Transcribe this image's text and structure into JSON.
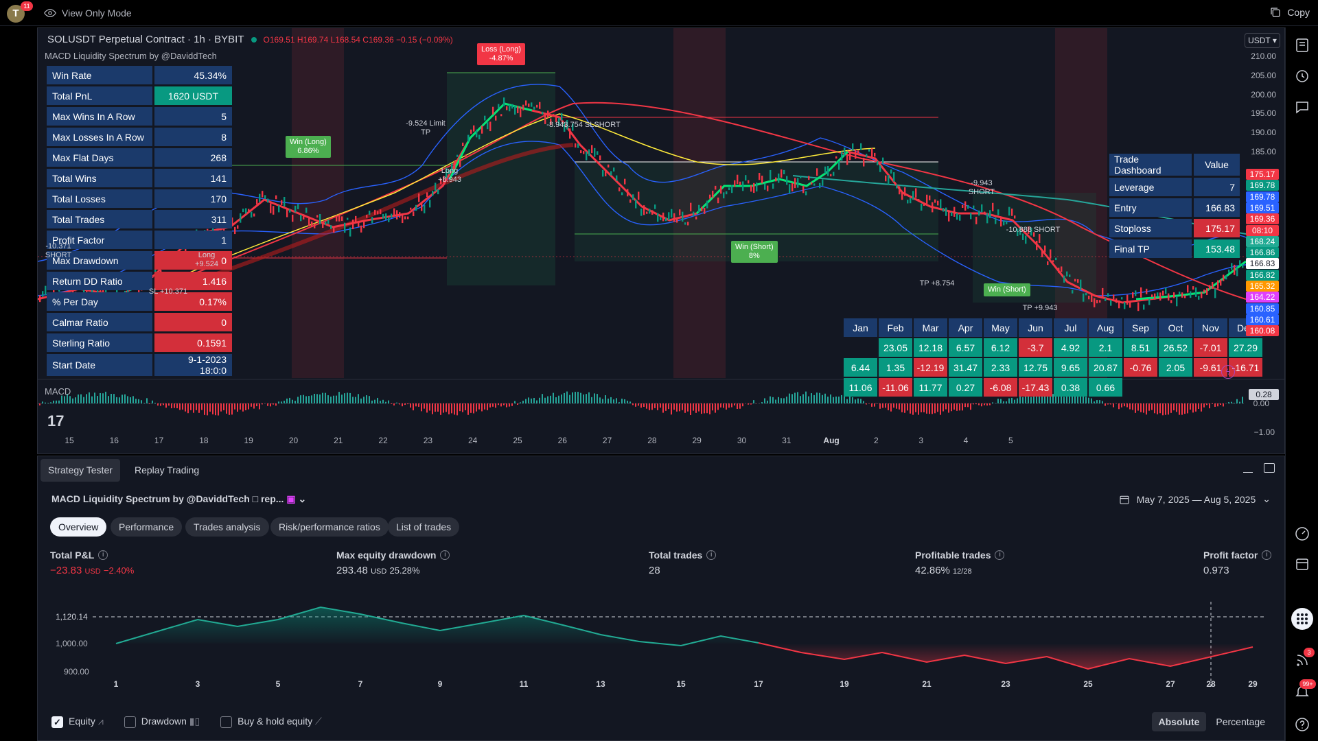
{
  "topbar": {
    "avatar_letter": "T",
    "avatar_badge": "11",
    "view_mode": "View Only Mode",
    "copy": "Copy"
  },
  "chart": {
    "symbol": "SOLUSDT Perpetual Contract · 1h · BYBIT",
    "ohlc": "O169.51 H169.74 L168.54 C169.36 −0.15 (−0.09%)",
    "indicator": "MACD Liquidity Spectrum by @DaviddTech",
    "currency": "USDT",
    "macd_label": "MACD",
    "macd_values": [
      "0.28",
      "0.00",
      "−1.00"
    ],
    "price_labels": [
      "210.00",
      "205.00",
      "200.00",
      "195.00",
      "190.00",
      "185.00"
    ],
    "price_tags": [
      {
        "v": "175.17",
        "c": "#f23645"
      },
      {
        "v": "169.78",
        "c": "#089981"
      },
      {
        "v": "169.78",
        "c": "#2962ff"
      },
      {
        "v": "169.51",
        "c": "#2962ff"
      },
      {
        "v": "169.36",
        "c": "#f23645"
      },
      {
        "v": "08:10",
        "c": "#f23645"
      },
      {
        "v": "168.24",
        "c": "#22ab94"
      },
      {
        "v": "166.86",
        "c": "#089981"
      },
      {
        "v": "166.83",
        "c": "#ffffff"
      },
      {
        "v": "166.82",
        "c": "#089981"
      },
      {
        "v": "165.32",
        "c": "#ff9800"
      },
      {
        "v": "164.22",
        "c": "#e040fb"
      },
      {
        "v": "160.85",
        "c": "#2962ff"
      },
      {
        "v": "160.61",
        "c": "#2962ff"
      },
      {
        "v": "160.08",
        "c": "#f23645"
      }
    ],
    "time_labels": [
      "15",
      "16",
      "17",
      "18",
      "19",
      "20",
      "21",
      "22",
      "23",
      "24",
      "25",
      "26",
      "27",
      "28",
      "29",
      "30",
      "31",
      "Aug",
      "2",
      "3",
      "4",
      "5"
    ],
    "stats": [
      {
        "k": "Win Rate",
        "v": "45.34%",
        "style": ""
      },
      {
        "k": "Total PnL",
        "v": "1620 USDT",
        "style": "green"
      },
      {
        "k": "Max Wins In A Row",
        "v": "5",
        "style": ""
      },
      {
        "k": "Max Losses In A Row",
        "v": "8",
        "style": ""
      },
      {
        "k": "Max Flat Days",
        "v": "268",
        "style": ""
      },
      {
        "k": "Total Wins",
        "v": "141",
        "style": ""
      },
      {
        "k": "Total Losses",
        "v": "170",
        "style": ""
      },
      {
        "k": "Total Trades",
        "v": "311",
        "style": ""
      },
      {
        "k": "Profit Factor",
        "v": "1",
        "style": ""
      },
      {
        "k": "Max Drawdown",
        "v": "0",
        "style": "red"
      },
      {
        "k": "Return DD Ratio",
        "v": "1.416",
        "style": "red"
      },
      {
        "k": "% Per Day",
        "v": "0.17%",
        "style": "red"
      },
      {
        "k": "Calmar Ratio",
        "v": "0",
        "style": "red"
      },
      {
        "k": "Sterling Ratio",
        "v": "0.1591",
        "style": "red"
      },
      {
        "k": "Start Date",
        "v": "9-1-2023 18:0:0",
        "style": ""
      }
    ],
    "trade_dashboard": {
      "title": "Trade Dashboard",
      "value_hdr": "Value",
      "rows": [
        {
          "k": "Leverage",
          "v": "7",
          "style": ""
        },
        {
          "k": "Entry",
          "v": "166.83",
          "style": ""
        },
        {
          "k": "Stoploss",
          "v": "175.17",
          "style": "red"
        },
        {
          "k": "Final TP",
          "v": "153.48",
          "style": "green"
        }
      ]
    },
    "monthly": {
      "months": [
        "Jan",
        "Feb",
        "Mar",
        "Apr",
        "May",
        "Jun",
        "Jul",
        "Aug",
        "Sep",
        "Oct",
        "Nov",
        "Dec"
      ],
      "rows": [
        [
          {
            "v": "",
            "s": "e"
          },
          {
            "v": "23.05",
            "s": "g"
          },
          {
            "v": "12.18",
            "s": "g"
          },
          {
            "v": "6.57",
            "s": "g"
          },
          {
            "v": "6.12",
            "s": "g"
          },
          {
            "v": "-3.7",
            "s": "r"
          },
          {
            "v": "4.92",
            "s": "g"
          },
          {
            "v": "2.1",
            "s": "g"
          },
          {
            "v": "8.51",
            "s": "g"
          },
          {
            "v": "26.52",
            "s": "g"
          },
          {
            "v": "-7.01",
            "s": "r"
          },
          {
            "v": "27.29",
            "s": "g"
          }
        ],
        [
          {
            "v": "6.44",
            "s": "g"
          },
          {
            "v": "1.35",
            "s": "g"
          },
          {
            "v": "-12.19",
            "s": "r"
          },
          {
            "v": "31.47",
            "s": "g"
          },
          {
            "v": "2.33",
            "s": "g"
          },
          {
            "v": "12.75",
            "s": "g"
          },
          {
            "v": "9.65",
            "s": "g"
          },
          {
            "v": "20.87",
            "s": "g"
          },
          {
            "v": "-0.76",
            "s": "r"
          },
          {
            "v": "2.05",
            "s": "g"
          },
          {
            "v": "-9.61",
            "s": "r"
          },
          {
            "v": "-16.71",
            "s": "r"
          }
        ],
        [
          {
            "v": "11.06",
            "s": "g"
          },
          {
            "v": "-11.06",
            "s": "r"
          },
          {
            "v": "11.77",
            "s": "g"
          },
          {
            "v": "0.27",
            "s": "g"
          },
          {
            "v": "-6.08",
            "s": "r"
          },
          {
            "v": "-17.43",
            "s": "r"
          },
          {
            "v": "0.38",
            "s": "g"
          },
          {
            "v": "0.66",
            "s": "g"
          },
          {
            "v": "",
            "s": "e"
          },
          {
            "v": "",
            "s": "e"
          },
          {
            "v": "",
            "s": "e"
          },
          {
            "v": "",
            "s": "e"
          }
        ]
      ]
    },
    "trade_labels": {
      "win_long": "Win (Long)",
      "win_long_pct": "6.86%",
      "loss_long": "Loss (Long)",
      "loss_long_pct": "-4.87%",
      "win_short": "Win (Short)",
      "win_short_pct": "8%",
      "win_short2": "Win (Short)",
      "limit_tp": "-9.524 Limit TP",
      "long_note": "Long +8.943",
      "sl_short": "-8.943.754 SLSHORT",
      "short1": "-9.943 SHORT",
      "short2": "-10.888 SHORT",
      "tp_note": "TP +8.754",
      "tp_note2": "TP +9.943",
      "sl_note": "SL +10.371",
      "long2": "Long +9.524",
      "short_left": "-10.371 SHORT"
    }
  },
  "tester": {
    "tabs": [
      "Strategy Tester",
      "Replay Trading"
    ],
    "strategy": "MACD Liquidity Spectrum by @DaviddTech □ rep...",
    "date_range": "May 7, 2025 — Aug 5, 2025",
    "pills": [
      "Overview",
      "Performance",
      "Trades analysis",
      "Risk/performance ratios",
      "List of trades"
    ],
    "metrics": {
      "pnl_title": "Total P&L",
      "pnl": "−23.83",
      "pnl_unit": "USD",
      "pnl_pct": "−2.40%",
      "dd_title": "Max equity drawdown",
      "dd": "293.48",
      "dd_unit": "USD",
      "dd_pct": "25.28%",
      "trades_title": "Total trades",
      "trades": "28",
      "prof_title": "Profitable trades",
      "prof": "42.86%",
      "prof_sub": "12/28",
      "pf_title": "Profit factor",
      "pf": "0.973"
    },
    "equity_axis": [
      "1,120.14",
      "1,000.00",
      "900.00"
    ],
    "equity_x": [
      "1",
      "3",
      "5",
      "7",
      "9",
      "11",
      "13",
      "15",
      "17",
      "19",
      "21",
      "23",
      "25",
      "27",
      "28",
      "29"
    ],
    "checkboxes": [
      "Equity",
      "Drawdown",
      "Buy & hold equity"
    ],
    "modes": [
      "Absolute",
      "Percentage"
    ]
  },
  "rightbar": {
    "badge_feed": "3",
    "badge_notif": "99+"
  }
}
